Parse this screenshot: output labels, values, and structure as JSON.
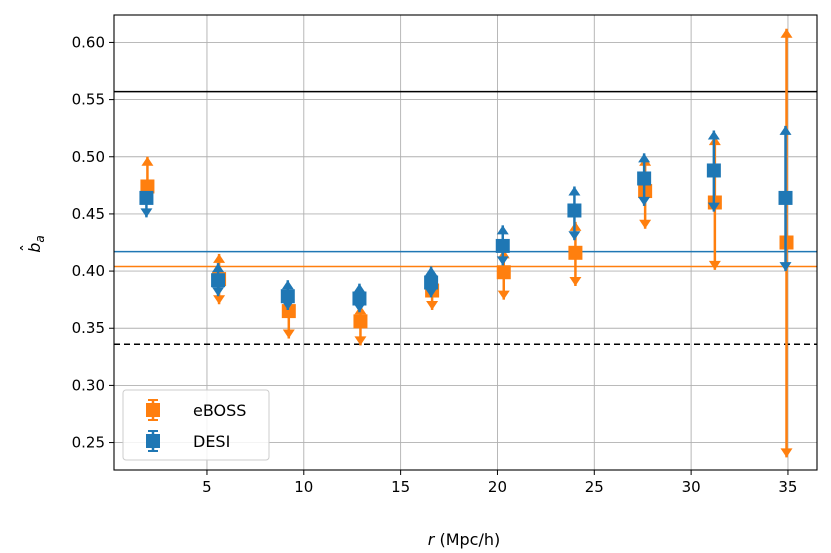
{
  "chart_data": {
    "type": "scatter",
    "title": "",
    "xlabel": {
      "var": "r",
      "unit": " (Mpc/h)"
    },
    "ylabel": {
      "base": "b",
      "hat": "ˆ",
      "sub": "a"
    },
    "xlim": [
      0.2,
      36.5
    ],
    "ylim": [
      0.226,
      0.624
    ],
    "xticks": [
      5,
      10,
      15,
      20,
      25,
      30,
      35
    ],
    "xtick_labels": [
      "5",
      "10",
      "15",
      "20",
      "25",
      "30",
      "35"
    ],
    "yticks": [
      0.25,
      0.3,
      0.35,
      0.4,
      0.45,
      0.5,
      0.55,
      0.6
    ],
    "ytick_labels": [
      "0.25",
      "0.30",
      "0.35",
      "0.40",
      "0.45",
      "0.50",
      "0.55",
      "0.60"
    ],
    "grid": true,
    "legend_position": "bottom-left",
    "series": [
      {
        "name": "eBOSS",
        "color": "#ff7f0e",
        "x": [
          1.9,
          5.6,
          9.2,
          12.9,
          16.6,
          20.3,
          24.0,
          27.6,
          31.2,
          34.9
        ],
        "y": [
          0.474,
          0.393,
          0.365,
          0.356,
          0.383,
          0.399,
          0.416,
          0.47,
          0.46,
          0.425
        ],
        "yerr_low": [
          0.474,
          0.371,
          0.341,
          0.335,
          0.366,
          0.375,
          0.387,
          0.437,
          0.401,
          0.237
        ],
        "yerr_high": [
          0.5,
          0.415,
          0.383,
          0.37,
          0.4,
          0.419,
          0.443,
          0.5,
          0.518,
          0.612
        ]
      },
      {
        "name": "DESI",
        "color": "#1f77b4",
        "x": [
          1.9,
          5.6,
          9.2,
          12.9,
          16.6,
          20.3,
          24.0,
          27.6,
          31.2,
          34.9
        ],
        "y": [
          0.464,
          0.392,
          0.378,
          0.376,
          0.39,
          0.422,
          0.453,
          0.481,
          0.488,
          0.464
        ],
        "yerr_low": [
          0.447,
          0.378,
          0.366,
          0.364,
          0.377,
          0.405,
          0.427,
          0.457,
          0.452,
          0.4
        ],
        "yerr_high": [
          0.464,
          0.407,
          0.392,
          0.389,
          0.404,
          0.44,
          0.474,
          0.503,
          0.523,
          0.527
        ]
      }
    ],
    "hlines": [
      {
        "y": 0.557,
        "color": "#000000",
        "style": "solid"
      },
      {
        "y": 0.336,
        "color": "#000000",
        "style": "dashed"
      },
      {
        "y": 0.417,
        "color": "#1f77b4",
        "style": "solid"
      },
      {
        "y": 0.404,
        "color": "#ff7f0e",
        "style": "solid"
      }
    ]
  }
}
